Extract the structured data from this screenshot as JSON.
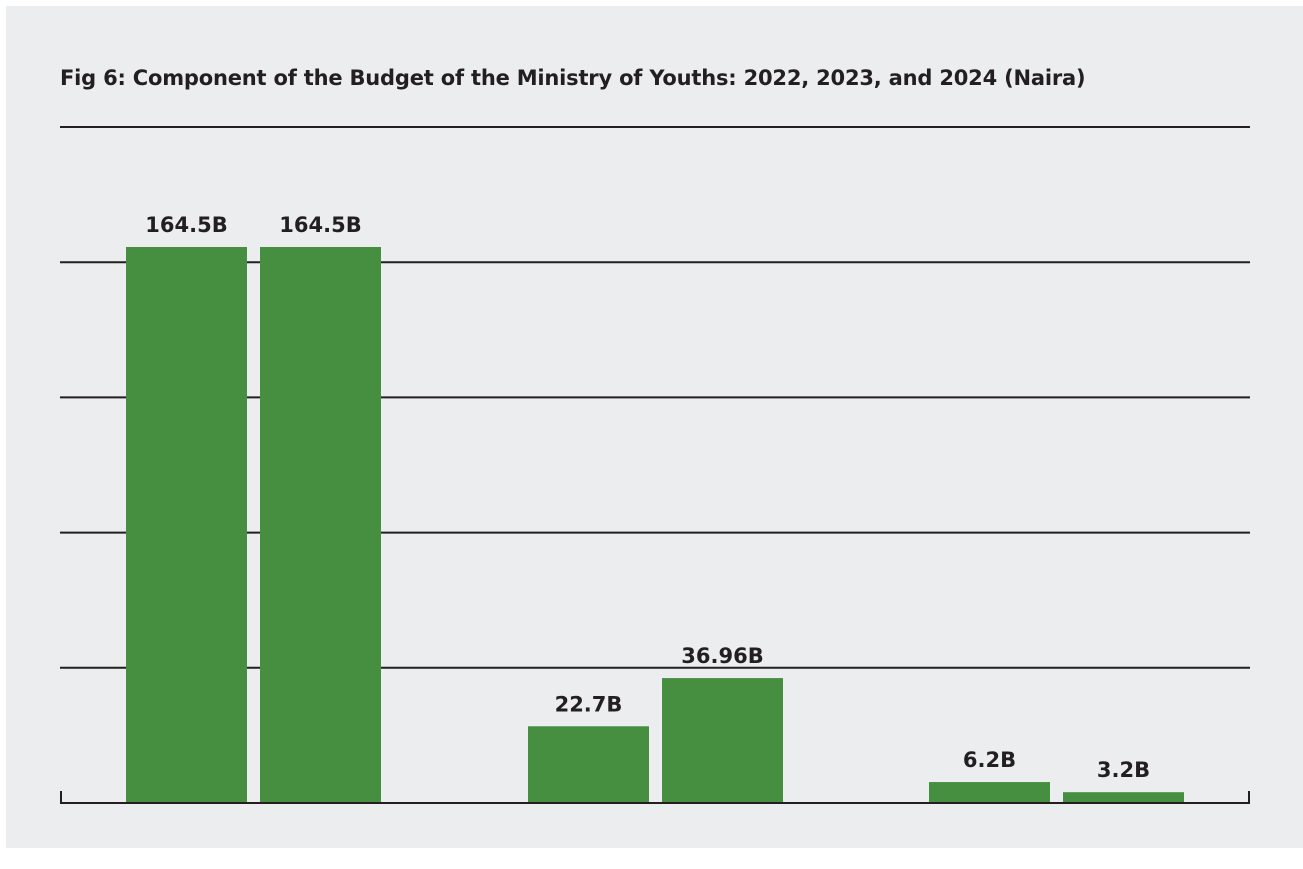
{
  "colors": {
    "background": "#ECEDEF",
    "bar": "#468F41",
    "gridline": "#231F20",
    "text": "#231F20"
  },
  "chart_data": {
    "type": "bar",
    "title": "Fig 6: Component of the Budget of the Ministry of Youths: 2022, 2023, and 2024 (Naira)",
    "xlabel": "",
    "ylabel": "",
    "categories": [
      "",
      "",
      ""
    ],
    "series": [
      {
        "values": [
          164.5,
          22.7,
          6.2
        ],
        "labels": [
          "164.5B",
          "22.7B",
          "6.2B"
        ]
      },
      {
        "values": [
          164.5,
          36.96,
          3.2
        ],
        "labels": [
          "164.5B",
          "36.96B",
          "3.2B"
        ]
      }
    ],
    "ylim": [
      0,
      200
    ],
    "unit": "B",
    "grid": true,
    "legend": "none"
  }
}
